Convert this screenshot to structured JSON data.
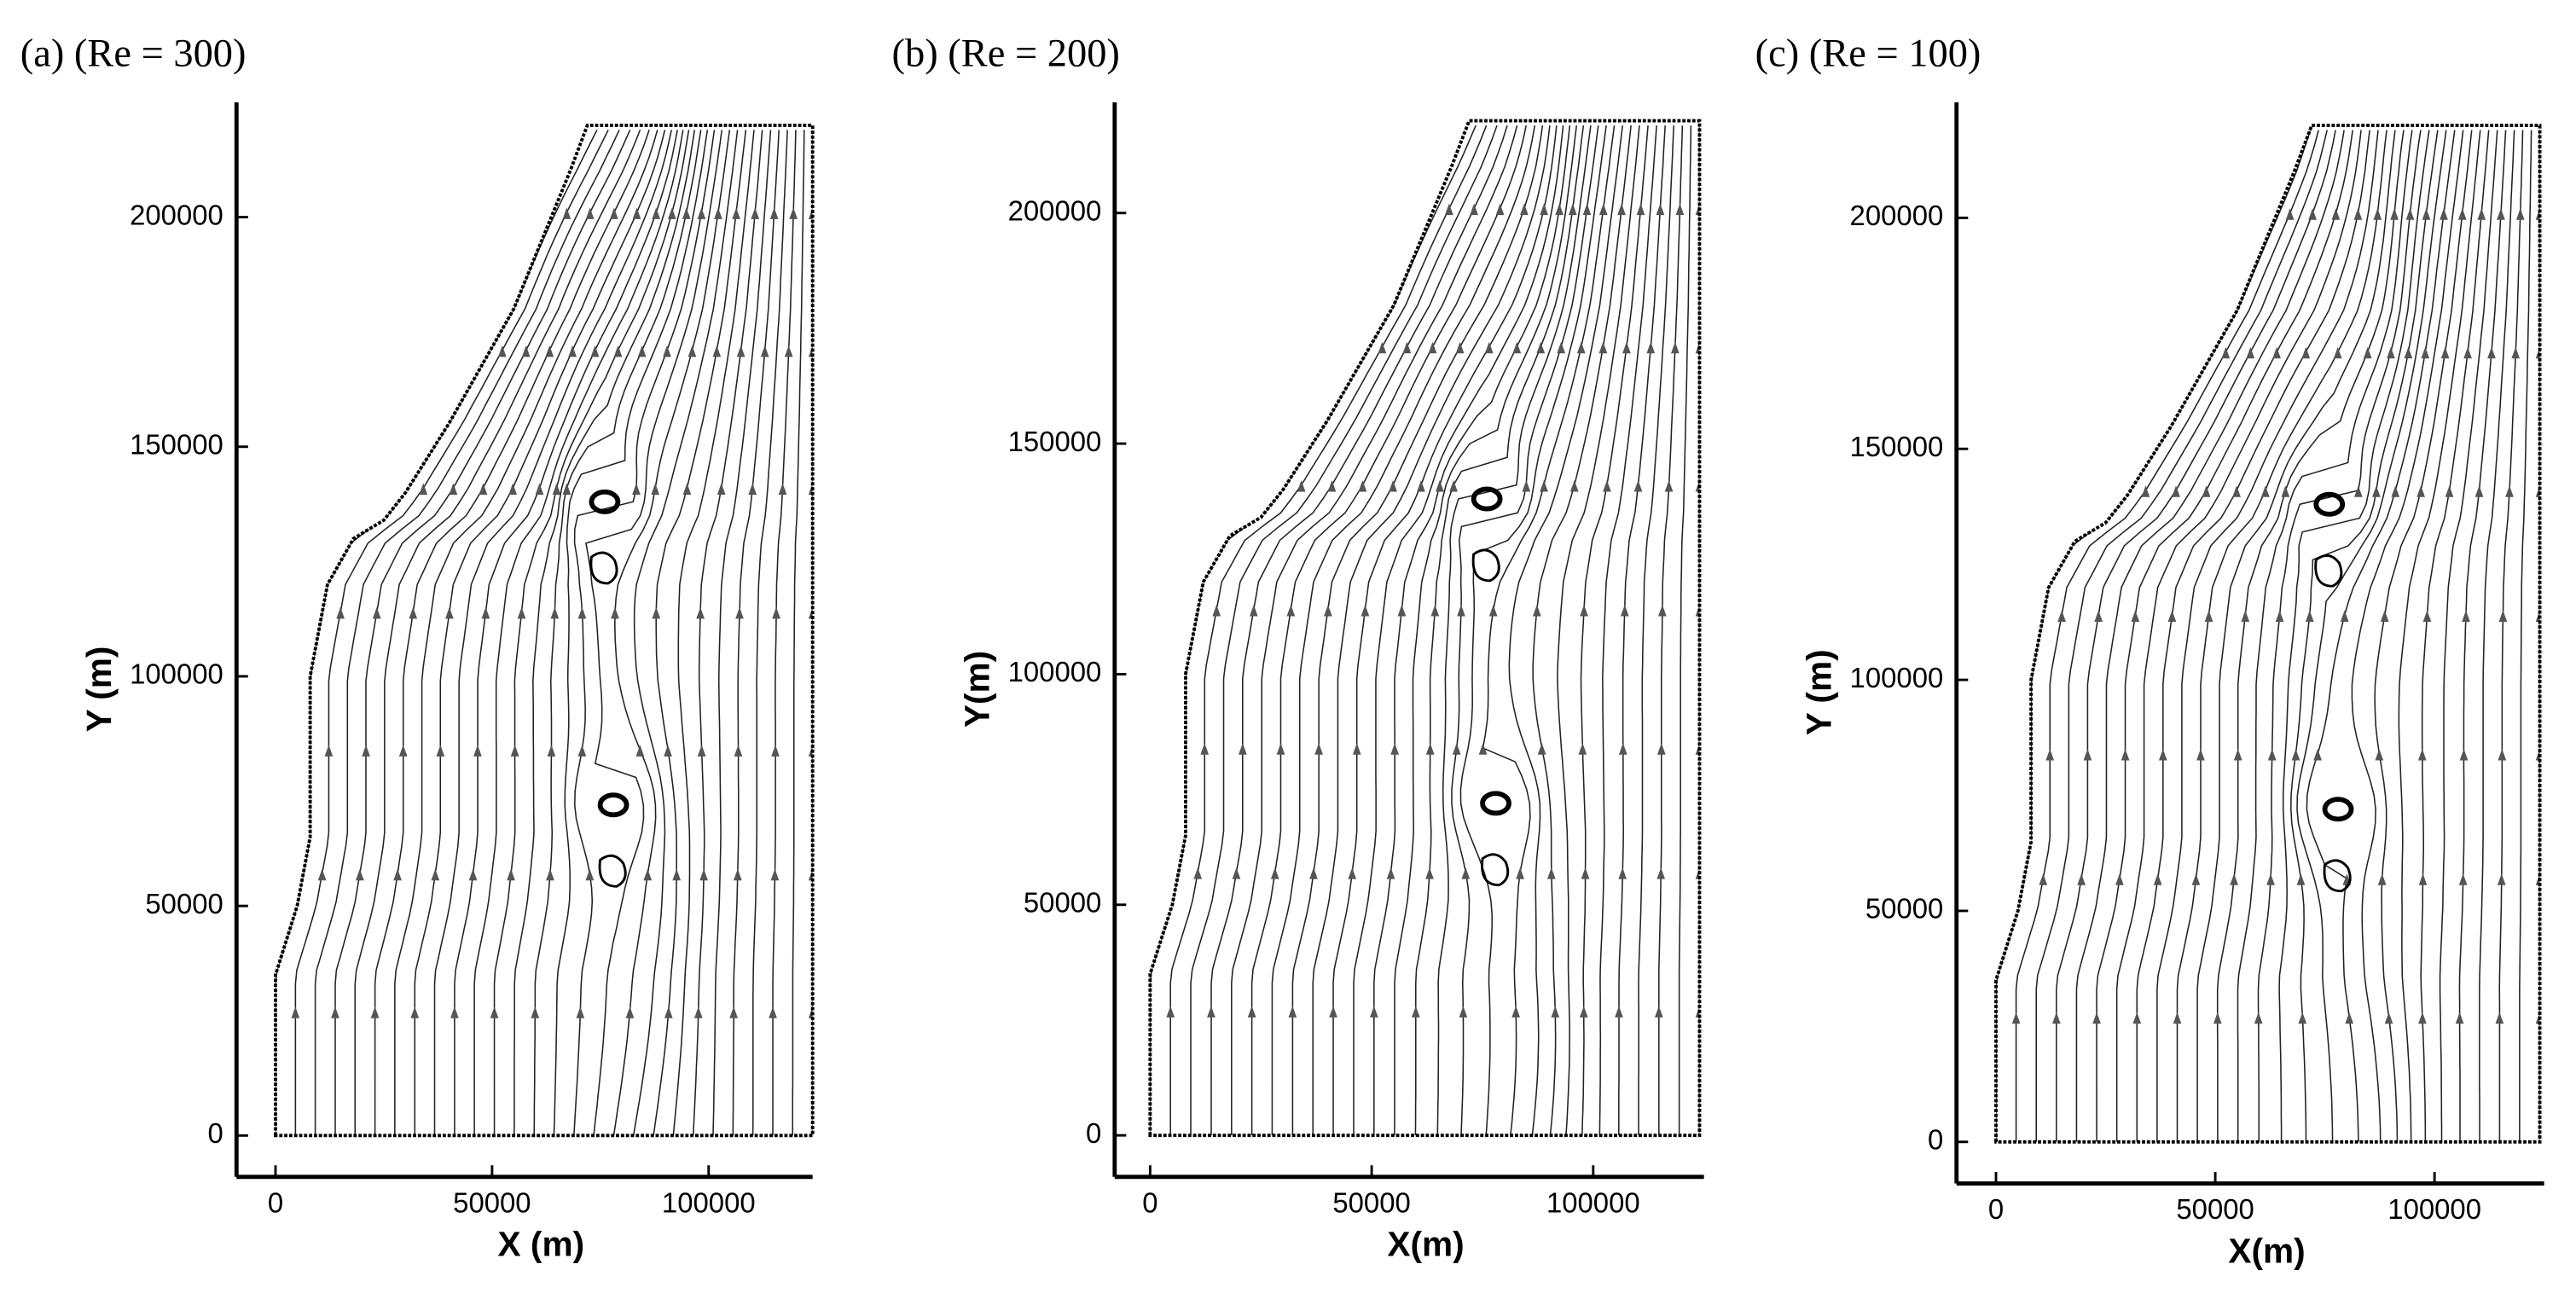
{
  "chart_data": [
    {
      "type": "streamline",
      "title": "(a) (Re = 300)",
      "x_label": "X (m)",
      "y_label": "Y (m)",
      "xlim": [
        -9000,
        124000
      ],
      "ylim": [
        -9000,
        225000
      ],
      "xticks": [
        0,
        50000,
        100000
      ],
      "yticks": [
        0,
        50000,
        100000,
        150000,
        200000
      ]
    },
    {
      "type": "streamline",
      "title": "(b) (Re = 200)",
      "x_label": "X(m)",
      "y_label": "Y(m)",
      "xlim": [
        -8000,
        125000
      ],
      "ylim": [
        -9000,
        224000
      ],
      "xticks": [
        0,
        50000,
        100000
      ],
      "yticks": [
        0,
        50000,
        100000,
        150000,
        200000
      ]
    },
    {
      "type": "streamline",
      "title": "(c) (Re = 100)",
      "x_label": "X(m)",
      "y_label": "Y (m)",
      "xlim": [
        -9000,
        125000
      ],
      "ylim": [
        -9000,
        225000
      ],
      "xticks": [
        0,
        50000,
        100000
      ],
      "yticks": [
        0,
        50000,
        100000,
        150000,
        200000
      ]
    }
  ]
}
